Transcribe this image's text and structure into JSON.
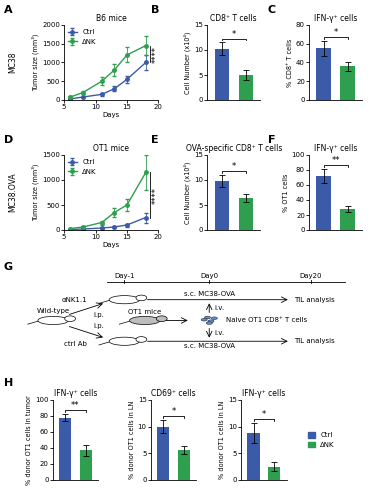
{
  "chart_data": [
    {
      "panel": "A",
      "type": "line",
      "title": "B6 mice",
      "subtitle": "MC38",
      "xlabel": "Days",
      "ylabel": "Tumor size (mm³)",
      "x": [
        6,
        8,
        11,
        13,
        15,
        18
      ],
      "series": [
        {
          "name": "Ctrl",
          "color": "#3b5ba9",
          "values": [
            30,
            80,
            150,
            300,
            550,
            1000
          ],
          "errors": [
            10,
            20,
            40,
            60,
            100,
            200
          ]
        },
        {
          "name": "ΔNK",
          "color": "#2e9e4f",
          "values": [
            80,
            200,
            500,
            800,
            1200,
            1450
          ],
          "errors": [
            20,
            50,
            100,
            150,
            200,
            250
          ]
        }
      ],
      "xlim": [
        5,
        20
      ],
      "xticks": [
        5,
        10,
        15,
        20
      ],
      "ylim": [
        0,
        2000
      ],
      "yticks": [
        0,
        500,
        1000,
        1500,
        2000
      ],
      "legend": "upper left",
      "marker": "o",
      "significance": "****"
    },
    {
      "panel": "B",
      "type": "bar",
      "title": "CD8⁺ T cells",
      "ylabel": "Cell Number (x10⁴)",
      "categories": [
        null,
        null
      ],
      "values": [
        10.2,
        5.0
      ],
      "errors": [
        1.3,
        1.0
      ],
      "colors": [
        "#3b5ba9",
        "#2e9e4f"
      ],
      "ylim": [
        0,
        15
      ],
      "yticks": [
        0,
        5,
        10,
        15
      ],
      "tick_labels": "y",
      "significance": "*"
    },
    {
      "panel": "C",
      "type": "bar",
      "title": "IFN-γ⁺ cells",
      "ylabel": "% CD8⁺ T cells",
      "categories": [
        null,
        null
      ],
      "values": [
        55,
        36
      ],
      "errors": [
        8,
        5
      ],
      "colors": [
        "#3b5ba9",
        "#2e9e4f"
      ],
      "ylim": [
        0,
        80
      ],
      "yticks": [
        0,
        20,
        40,
        60,
        80
      ],
      "tick_labels": "y",
      "significance": "*"
    },
    {
      "panel": "D",
      "type": "line",
      "title": "OT1 mice",
      "subtitle": "MC38.OVA",
      "xlabel": "Days",
      "ylabel": "Tumor size (mm³)",
      "x": [
        6,
        8,
        11,
        13,
        15,
        18
      ],
      "series": [
        {
          "name": "Ctrl",
          "color": "#3b5ba9",
          "values": [
            10,
            20,
            40,
            60,
            100,
            250
          ],
          "errors": [
            5,
            10,
            15,
            20,
            30,
            100
          ]
        },
        {
          "name": "ΔNK",
          "color": "#2e9e4f",
          "values": [
            30,
            60,
            150,
            350,
            500,
            1150
          ],
          "errors": [
            10,
            20,
            40,
            80,
            120,
            350
          ]
        }
      ],
      "xlim": [
        5,
        20
      ],
      "xticks": [
        5,
        10,
        15,
        20
      ],
      "ylim": [
        0,
        1500
      ],
      "yticks": [
        0,
        500,
        1000,
        1500
      ],
      "legend": "upper left",
      "marker": "o",
      "significance": "****"
    },
    {
      "panel": "E",
      "type": "bar",
      "title": "OVA-specific CD8⁺ T cells",
      "ylabel": "Cell Number (x10⁴)",
      "categories": [
        null,
        null
      ],
      "values": [
        9.8,
        6.3
      ],
      "errors": [
        1.2,
        0.8
      ],
      "colors": [
        "#3b5ba9",
        "#2e9e4f"
      ],
      "ylim": [
        0,
        15
      ],
      "yticks": [
        0,
        5,
        10,
        15
      ],
      "tick_labels": "y",
      "significance": "*"
    },
    {
      "panel": "F",
      "type": "bar",
      "title": "IFN-γ⁺ cells",
      "ylabel": "% OT1 cells",
      "categories": [
        null,
        null
      ],
      "values": [
        72,
        28
      ],
      "errors": [
        9,
        4
      ],
      "colors": [
        "#3b5ba9",
        "#2e9e4f"
      ],
      "ylim": [
        0,
        100
      ],
      "yticks": [
        0,
        20,
        40,
        60,
        80,
        100
      ],
      "tick_labels": "y",
      "significance": "**"
    },
    {
      "panel": "H",
      "type": "bar",
      "title": "IFN-γ⁺ cells",
      "ylabel": "% donor OT1 cells in tumor",
      "categories": [
        null,
        null
      ],
      "values": [
        78,
        37
      ],
      "errors": [
        4,
        7
      ],
      "colors": [
        "#3b5ba9",
        "#2e9e4f"
      ],
      "ylim": [
        0,
        100
      ],
      "yticks": [
        0,
        20,
        40,
        60,
        80,
        100
      ],
      "tick_labels": "y",
      "significance": "**"
    },
    {
      "type": "bar",
      "title": "CD69⁺ cells",
      "ylabel": "% donor OT1 cells in LN",
      "categories": [
        null,
        null
      ],
      "values": [
        10,
        5.6
      ],
      "errors": [
        1.2,
        0.8
      ],
      "colors": [
        "#3b5ba9",
        "#2e9e4f"
      ],
      "ylim": [
        0,
        15
      ],
      "yticks": [
        0,
        5,
        10,
        15
      ],
      "tick_labels": "y",
      "significance": "*"
    },
    {
      "type": "bar",
      "title": "IFN-γ⁺ cells",
      "ylabel": "% donor OT1 cells in LN",
      "categories": [
        null,
        null
      ],
      "values": [
        8.8,
        2.5
      ],
      "errors": [
        1.8,
        0.8
      ],
      "colors": [
        "#3b5ba9",
        "#2e9e4f"
      ],
      "ylim": [
        0,
        15
      ],
      "yticks": [
        0,
        5,
        10,
        15
      ],
      "tick_labels": "y",
      "significance": "*"
    }
  ],
  "figure_legend": [
    {
      "name": "Ctrl",
      "color": "#3b5ba9"
    },
    {
      "name": "ΔNK",
      "color": "#2e9e4f"
    }
  ],
  "diagram": {
    "panel": "G",
    "days": [
      "Day-1",
      "Day0",
      "Day20"
    ],
    "host": "Wild-type",
    "donor": "OT1 mice",
    "cells": "Naive OT1 CD8⁺ T cells",
    "transfer_route": "i.v.",
    "groups": [
      {
        "treatment": "αNK1.1",
        "route": "i.p.",
        "injection": "s.c. MC38-OVA",
        "readout": "TIL analysis"
      },
      {
        "treatment": "ctrl Ab",
        "route": "i.p.",
        "injection": "s.c. MC38-OVA",
        "readout": "TIL analysis"
      }
    ]
  }
}
